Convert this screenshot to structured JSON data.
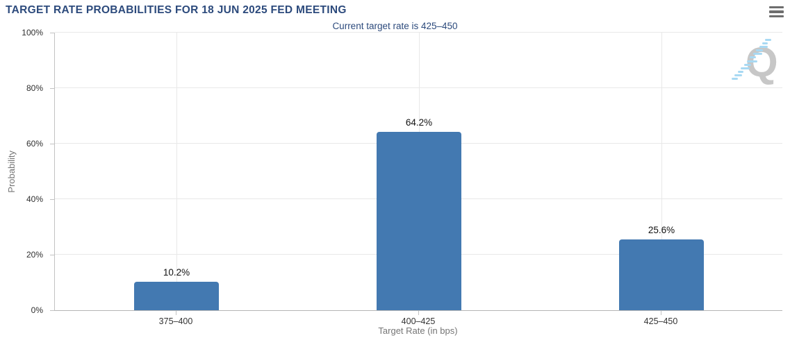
{
  "header": {
    "title": "TARGET RATE PROBABILITIES FOR 18 JUN 2025 FED MEETING"
  },
  "subtitle": "Current target rate is 425–450",
  "watermark": {
    "letter": "Q"
  },
  "colors": {
    "title_navy": "#2c4a7c",
    "bar_blue": "#4379b1",
    "gridline": "#e8e8e8",
    "axis_line": "#c2c2c2",
    "axis_title_gray": "#757575",
    "menu_icon_gray": "#6e6e6e",
    "watermark_gray": "#c7c7c7",
    "watermark_blue": "#a8d9f3"
  },
  "chart_data": {
    "type": "bar",
    "title": "TARGET RATE PROBABILITIES FOR 18 JUN 2025 FED MEETING",
    "subtitle": "Current target rate is 425–450",
    "categories": [
      "375–400",
      "400–425",
      "425–450"
    ],
    "values": [
      10.2,
      64.2,
      25.6
    ],
    "value_labels": [
      "10.2%",
      "64.2%",
      "25.6%"
    ],
    "xlabel": "Target Rate (in bps)",
    "ylabel": "Probability",
    "ylim": [
      0,
      100
    ],
    "ytick_step": 20,
    "ytick_labels": [
      "0%",
      "20%",
      "40%",
      "60%",
      "80%",
      "100%"
    ],
    "grid": true,
    "legend_position": "none"
  }
}
